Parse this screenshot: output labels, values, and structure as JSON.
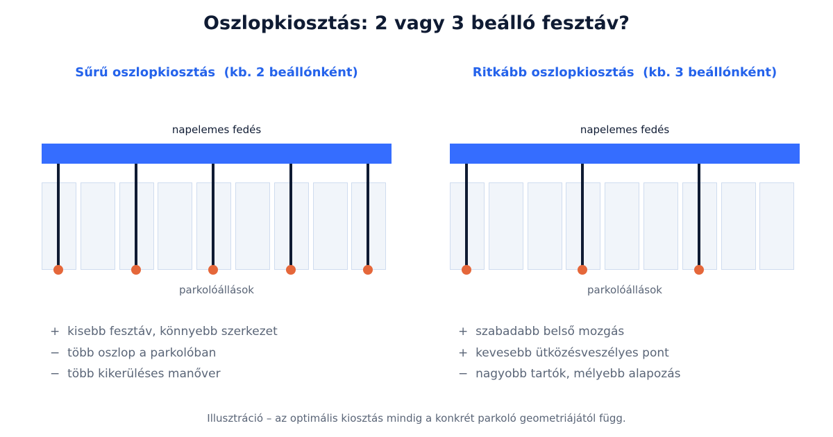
{
  "title": "Oszlopkiosztás: 2 vagy 3 beálló fesztáv?",
  "panels": [
    {
      "heading": "Sűrű oszlopkiosztás  (kb. 2 beállónként)",
      "roof_label": "napelemes fedés",
      "parking_label": "parkolóállások",
      "parking_spots": 9,
      "columns_every_spots": 2,
      "points": [
        {
          "sign": "+",
          "text": "kisebb fesztáv, könnyebb szerkezet"
        },
        {
          "sign": "−",
          "text": "több oszlop a parkolóban"
        },
        {
          "sign": "−",
          "text": "több kikerüléses manőver"
        }
      ]
    },
    {
      "heading": "Ritkább oszlopkiosztás  (kb. 3 beállónként)",
      "roof_label": "napelemes fedés",
      "parking_label": "parkolóállások",
      "parking_spots": 9,
      "columns_every_spots": 3,
      "points": [
        {
          "sign": "+",
          "text": "szabadabb belső mozgás"
        },
        {
          "sign": "+",
          "text": "kevesebb ütközésveszélyes pont"
        },
        {
          "sign": "−",
          "text": "nagyobb tartók, mélyebb alapozás"
        }
      ]
    }
  ],
  "footer": "Illusztráció – az optimális kiosztás mindig a konkrét parkoló geometriájától függ.",
  "colors": {
    "roof": "#356dff",
    "column": "#0f1b33",
    "foot": "#e5673a",
    "spot_fill": "#f1f5fa",
    "heading": "#2563eb"
  }
}
